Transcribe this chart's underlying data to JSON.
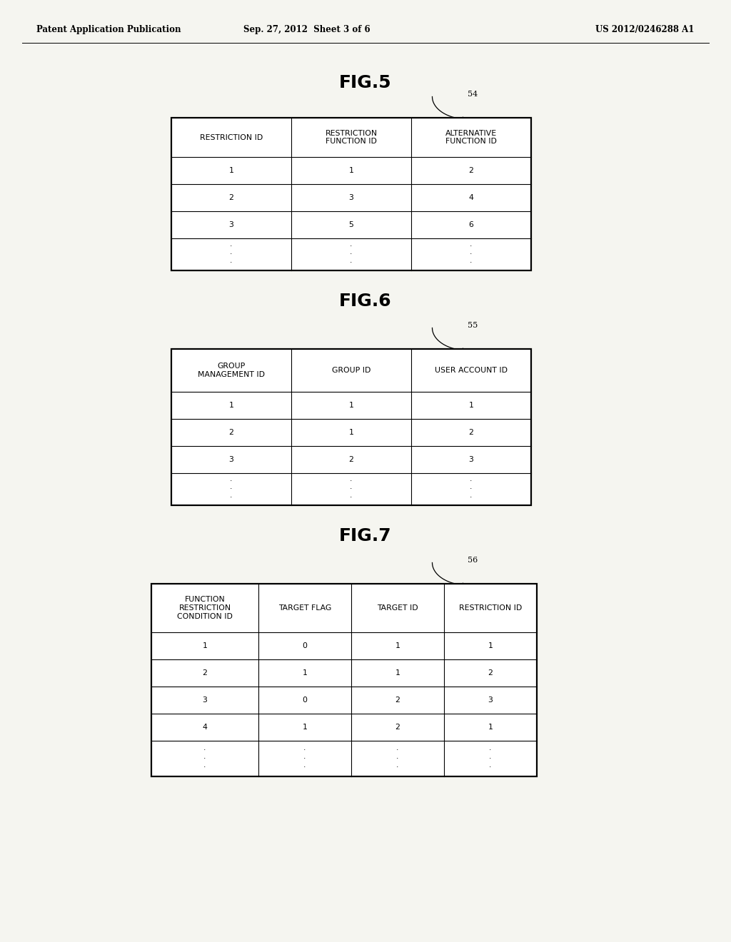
{
  "background_color": "#f5f5f0",
  "header_text": {
    "left": "Patent Application Publication",
    "center": "Sep. 27, 2012  Sheet 3 of 6",
    "right": "US 2012/0246288 A1"
  },
  "fig5": {
    "title": "FIG.5",
    "label": "54",
    "headers": [
      "RESTRICTION ID",
      "RESTRICTION\nFUNCTION ID",
      "ALTERNATIVE\nFUNCTION ID"
    ],
    "rows": [
      [
        "1",
        "1",
        "2"
      ],
      [
        "2",
        "3",
        "4"
      ],
      [
        "3",
        "5",
        "6"
      ],
      [
        "·\n·\n·",
        "·\n·\n·",
        "·\n·\n·"
      ]
    ]
  },
  "fig6": {
    "title": "FIG.6",
    "label": "55",
    "headers": [
      "GROUP\nMANAGEMENT ID",
      "GROUP ID",
      "USER ACCOUNT ID"
    ],
    "rows": [
      [
        "1",
        "1",
        "1"
      ],
      [
        "2",
        "1",
        "2"
      ],
      [
        "3",
        "2",
        "3"
      ],
      [
        "·\n·\n·",
        "·\n·\n·",
        "·\n·\n·"
      ]
    ]
  },
  "fig7": {
    "title": "FIG.7",
    "label": "56",
    "headers": [
      "FUNCTION\nRESTRICTION\nCONDITION ID",
      "TARGET FLAG",
      "TARGET ID",
      "RESTRICTION ID"
    ],
    "rows": [
      [
        "1",
        "0",
        "1",
        "1"
      ],
      [
        "2",
        "1",
        "1",
        "2"
      ],
      [
        "3",
        "0",
        "2",
        "3"
      ],
      [
        "4",
        "1",
        "2",
        "1"
      ],
      [
        "·\n·\n·",
        "·\n·\n·",
        "·\n·\n·",
        "·\n·\n·"
      ]
    ]
  }
}
